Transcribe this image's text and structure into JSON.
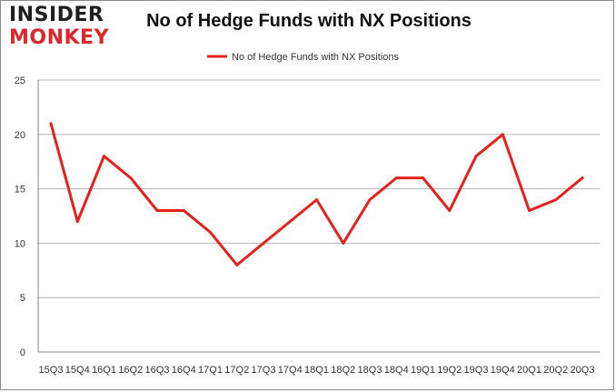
{
  "logo": {
    "line1": "INSIDER",
    "line2": "MONKEY"
  },
  "chart_data": {
    "type": "line",
    "title": "No of Hedge Funds with NX Positions",
    "xlabel": "",
    "ylabel": "",
    "categories": [
      "15Q3",
      "15Q4",
      "16Q1",
      "16Q2",
      "16Q3",
      "16Q4",
      "17Q1",
      "17Q2",
      "17Q3",
      "17Q4",
      "18Q1",
      "18Q2",
      "18Q3",
      "18Q4",
      "19Q1",
      "19Q2",
      "19Q3",
      "19Q4",
      "20Q1",
      "20Q2",
      "20Q3"
    ],
    "series": [
      {
        "name": "No of Hedge Funds with NX Positions",
        "values": [
          21,
          12,
          18,
          16,
          13,
          13,
          11,
          8,
          10,
          12,
          14,
          10,
          14,
          16,
          16,
          13,
          18,
          20,
          13,
          14,
          16
        ]
      }
    ],
    "ylim": [
      0,
      25
    ],
    "yticks": [
      0,
      5,
      10,
      15,
      20,
      25
    ],
    "grid": true,
    "legend_position": "top-center",
    "line_color": "#e8201c",
    "grid_color": "#b5b5b5"
  }
}
